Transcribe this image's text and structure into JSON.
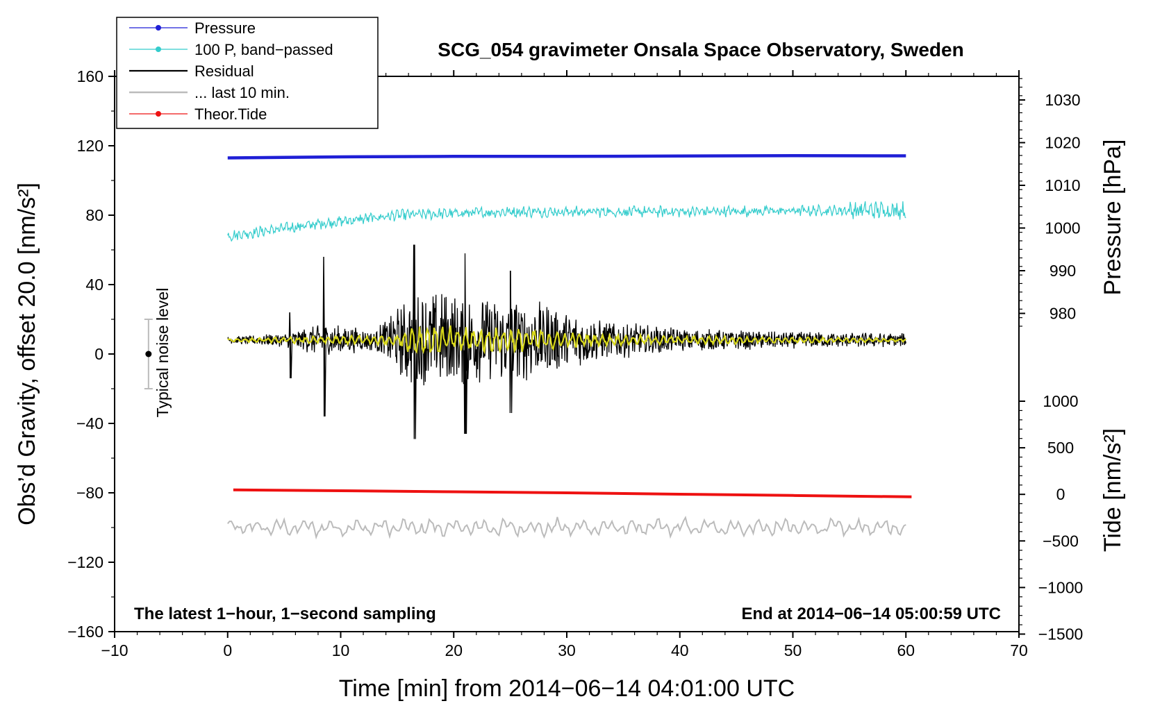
{
  "chart_data": {
    "type": "line",
    "title": "SCG_054 gravimeter Onsala Space Observatory, Sweden",
    "xlabel": "Time [min] from 2014−06−14 04:01:00 UTC",
    "ylabel_left": "Obs’d Gravity, offset 20.0 [nm/s²]",
    "ylabel_right_top": "Pressure [hPa]",
    "ylabel_right_bottom": "Tide [nm/s²]",
    "xlim": [
      -10,
      70
    ],
    "ylim": [
      -160,
      160
    ],
    "xticks": [
      "−10",
      "0",
      "10",
      "20",
      "30",
      "40",
      "50",
      "60",
      "70"
    ],
    "yticks_left": [
      "160",
      "120",
      "80",
      "40",
      "0",
      "−40",
      "−80",
      "−120",
      "−160"
    ],
    "yticks_pressure": [
      "1030",
      "1020",
      "1010",
      "1000",
      "990",
      "980"
    ],
    "yticks_tide": [
      "1000",
      "500",
      "0",
      "−500",
      "−1000",
      "−1500"
    ],
    "bottom_left_note": "The latest 1−hour, 1−second sampling",
    "bottom_right_note": "End at 2014−06−14 05:00:59 UTC",
    "noise_level": {
      "label": "Typical noise level",
      "x": -7,
      "center": 0,
      "half_range": 20
    },
    "legend": [
      {
        "label": "Pressure",
        "color": "#1f1fd6",
        "marker": true
      },
      {
        "label": "100 P, band−passed",
        "color": "#33cccc",
        "marker": true
      },
      {
        "label": "Residual",
        "color": "#000000",
        "marker": false
      },
      {
        "label": "... last 10 min.",
        "color": "#bbbbbb",
        "marker": false
      },
      {
        "label": "Theor.Tide",
        "color": "#ee1111",
        "marker": true
      }
    ],
    "series": [
      {
        "name": "Pressure",
        "color": "#1f1fd6",
        "x": [
          0,
          10,
          20,
          30,
          40,
          50,
          60
        ],
        "y": [
          113,
          113.6,
          113.9,
          113.9,
          114.1,
          114.3,
          114.2
        ]
      },
      {
        "name": "100 P, band−passed",
        "color": "#33cccc",
        "x_range": [
          0,
          60
        ],
        "baseline": [
          [
            0,
            68
          ],
          [
            8,
            75
          ],
          [
            15,
            80
          ],
          [
            25,
            82
          ],
          [
            40,
            82
          ],
          [
            60,
            83
          ]
        ],
        "noise_amplitude": 3
      },
      {
        "name": "Residual",
        "color": "#000000",
        "x_range": [
          0,
          60
        ],
        "baseline": 8,
        "envelope": [
          [
            0,
            2
          ],
          [
            5,
            4
          ],
          [
            8.5,
            10
          ],
          [
            13,
            6
          ],
          [
            16.5,
            30
          ],
          [
            22,
            26
          ],
          [
            27,
            24
          ],
          [
            33,
            12
          ],
          [
            40,
            7
          ],
          [
            50,
            5
          ],
          [
            60,
            4
          ]
        ],
        "peaks": [
          [
            8.5,
            56,
            -36
          ],
          [
            16.5,
            63,
            -49
          ],
          [
            21,
            58,
            -46
          ],
          [
            25,
            48,
            -34
          ],
          [
            5.5,
            24,
            -14
          ]
        ]
      },
      {
        "name": "Residual (smoothed)",
        "color": "#d8d81a",
        "x_range": [
          0,
          60
        ],
        "baseline": 8,
        "envelope": [
          [
            0,
            1
          ],
          [
            15,
            3
          ],
          [
            16.5,
            9
          ],
          [
            22,
            7
          ],
          [
            28,
            6
          ],
          [
            33,
            3
          ],
          [
            60,
            1
          ]
        ]
      },
      {
        "name": "... last 10 min.",
        "color": "#bbbbbb",
        "x_range": [
          0,
          60
        ],
        "baseline": -100,
        "noise_amplitude": 4
      },
      {
        "name": "Theor.Tide",
        "color": "#ee1111",
        "x": [
          0.5,
          10,
          20,
          30,
          40,
          50,
          60.5
        ],
        "y": [
          -78.3,
          -78.8,
          -79.4,
          -80.0,
          -80.8,
          -81.5,
          -82.3
        ]
      }
    ]
  }
}
